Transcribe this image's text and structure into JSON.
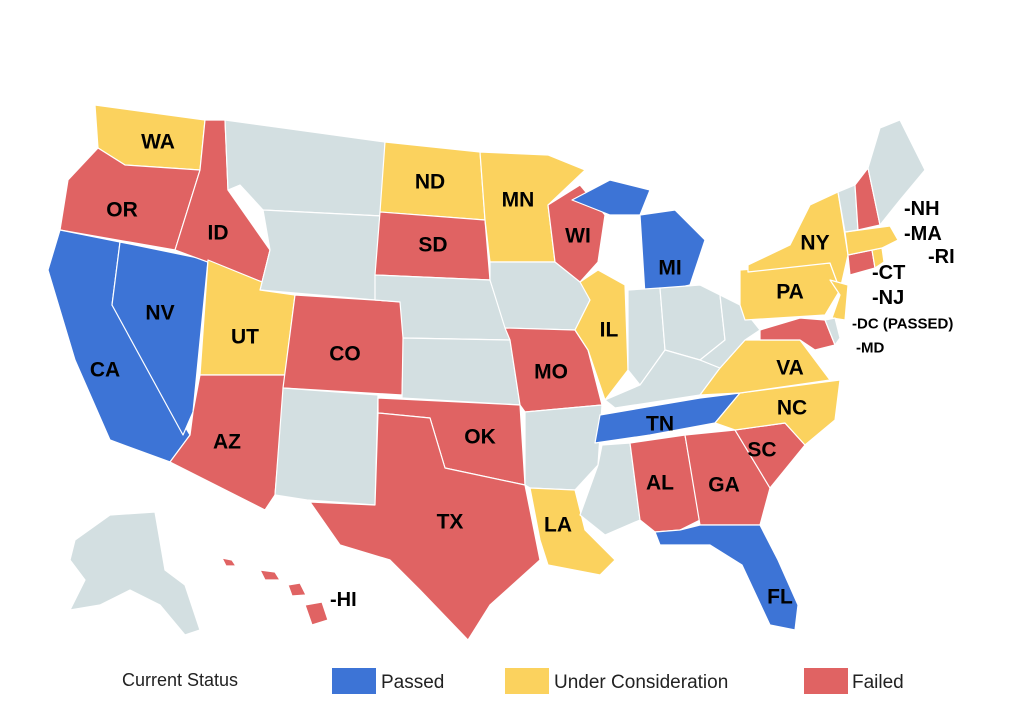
{
  "colors": {
    "passed": "#3d74d6",
    "under_consideration": "#fbd25e",
    "failed": "#e06363",
    "none": "#d3dfe1"
  },
  "states": [
    {
      "id": "WA",
      "label": "WA",
      "status": "under_consideration"
    },
    {
      "id": "OR",
      "label": "OR",
      "status": "failed"
    },
    {
      "id": "CA",
      "label": "CA",
      "status": "passed"
    },
    {
      "id": "NV",
      "label": "NV",
      "status": "passed"
    },
    {
      "id": "ID",
      "label": "ID",
      "status": "failed"
    },
    {
      "id": "MT",
      "label": "",
      "status": "none"
    },
    {
      "id": "WY",
      "label": "",
      "status": "none"
    },
    {
      "id": "UT",
      "label": "UT",
      "status": "under_consideration"
    },
    {
      "id": "AZ",
      "label": "AZ",
      "status": "failed"
    },
    {
      "id": "CO",
      "label": "CO",
      "status": "failed"
    },
    {
      "id": "NM",
      "label": "",
      "status": "none"
    },
    {
      "id": "ND",
      "label": "ND",
      "status": "under_consideration"
    },
    {
      "id": "SD",
      "label": "SD",
      "status": "failed"
    },
    {
      "id": "NE",
      "label": "",
      "status": "none"
    },
    {
      "id": "KS",
      "label": "",
      "status": "none"
    },
    {
      "id": "OK",
      "label": "OK",
      "status": "failed"
    },
    {
      "id": "TX",
      "label": "TX",
      "status": "failed"
    },
    {
      "id": "MN",
      "label": "MN",
      "status": "under_consideration"
    },
    {
      "id": "IA",
      "label": "",
      "status": "none"
    },
    {
      "id": "MO",
      "label": "MO",
      "status": "failed"
    },
    {
      "id": "AR",
      "label": "",
      "status": "none"
    },
    {
      "id": "LA",
      "label": "LA",
      "status": "under_consideration"
    },
    {
      "id": "WI",
      "label": "WI",
      "status": "failed"
    },
    {
      "id": "IL",
      "label": "IL",
      "status": "under_consideration"
    },
    {
      "id": "MI",
      "label": "MI",
      "status": "passed"
    },
    {
      "id": "IN",
      "label": "",
      "status": "none"
    },
    {
      "id": "OH",
      "label": "",
      "status": "none"
    },
    {
      "id": "KY",
      "label": "",
      "status": "none"
    },
    {
      "id": "TN",
      "label": "TN",
      "status": "passed"
    },
    {
      "id": "MS",
      "label": "",
      "status": "none"
    },
    {
      "id": "AL",
      "label": "AL",
      "status": "failed"
    },
    {
      "id": "GA",
      "label": "GA",
      "status": "failed"
    },
    {
      "id": "FL",
      "label": "FL",
      "status": "passed"
    },
    {
      "id": "SC",
      "label": "SC",
      "status": "failed"
    },
    {
      "id": "NC",
      "label": "NC",
      "status": "under_consideration"
    },
    {
      "id": "VA",
      "label": "VA",
      "status": "under_consideration"
    },
    {
      "id": "WV",
      "label": "",
      "status": "none"
    },
    {
      "id": "PA",
      "label": "PA",
      "status": "under_consideration"
    },
    {
      "id": "NY",
      "label": "NY",
      "status": "under_consideration"
    },
    {
      "id": "NJ",
      "label": "",
      "status": "under_consideration"
    },
    {
      "id": "MD",
      "label": "",
      "status": "failed"
    },
    {
      "id": "DE",
      "label": "",
      "status": "none"
    },
    {
      "id": "CT",
      "label": "",
      "status": "failed"
    },
    {
      "id": "RI",
      "label": "",
      "status": "under_consideration"
    },
    {
      "id": "MA",
      "label": "",
      "status": "under_consideration"
    },
    {
      "id": "VT",
      "label": "",
      "status": "none"
    },
    {
      "id": "NH",
      "label": "",
      "status": "failed"
    },
    {
      "id": "ME",
      "label": "",
      "status": "none"
    },
    {
      "id": "AK",
      "label": "",
      "status": "none"
    },
    {
      "id": "HI",
      "label": "",
      "status": "failed"
    }
  ],
  "side_labels": {
    "nh": "-NH",
    "ma": "-MA",
    "ri": "-RI",
    "ct": "-CT",
    "nj": "-NJ",
    "dc": "-DC (PASSED)",
    "md": "-MD",
    "hi": "-HI"
  },
  "legend": {
    "title": "Current Status",
    "passed": "Passed",
    "under_consideration": "Under Consideration",
    "failed": "Failed"
  }
}
